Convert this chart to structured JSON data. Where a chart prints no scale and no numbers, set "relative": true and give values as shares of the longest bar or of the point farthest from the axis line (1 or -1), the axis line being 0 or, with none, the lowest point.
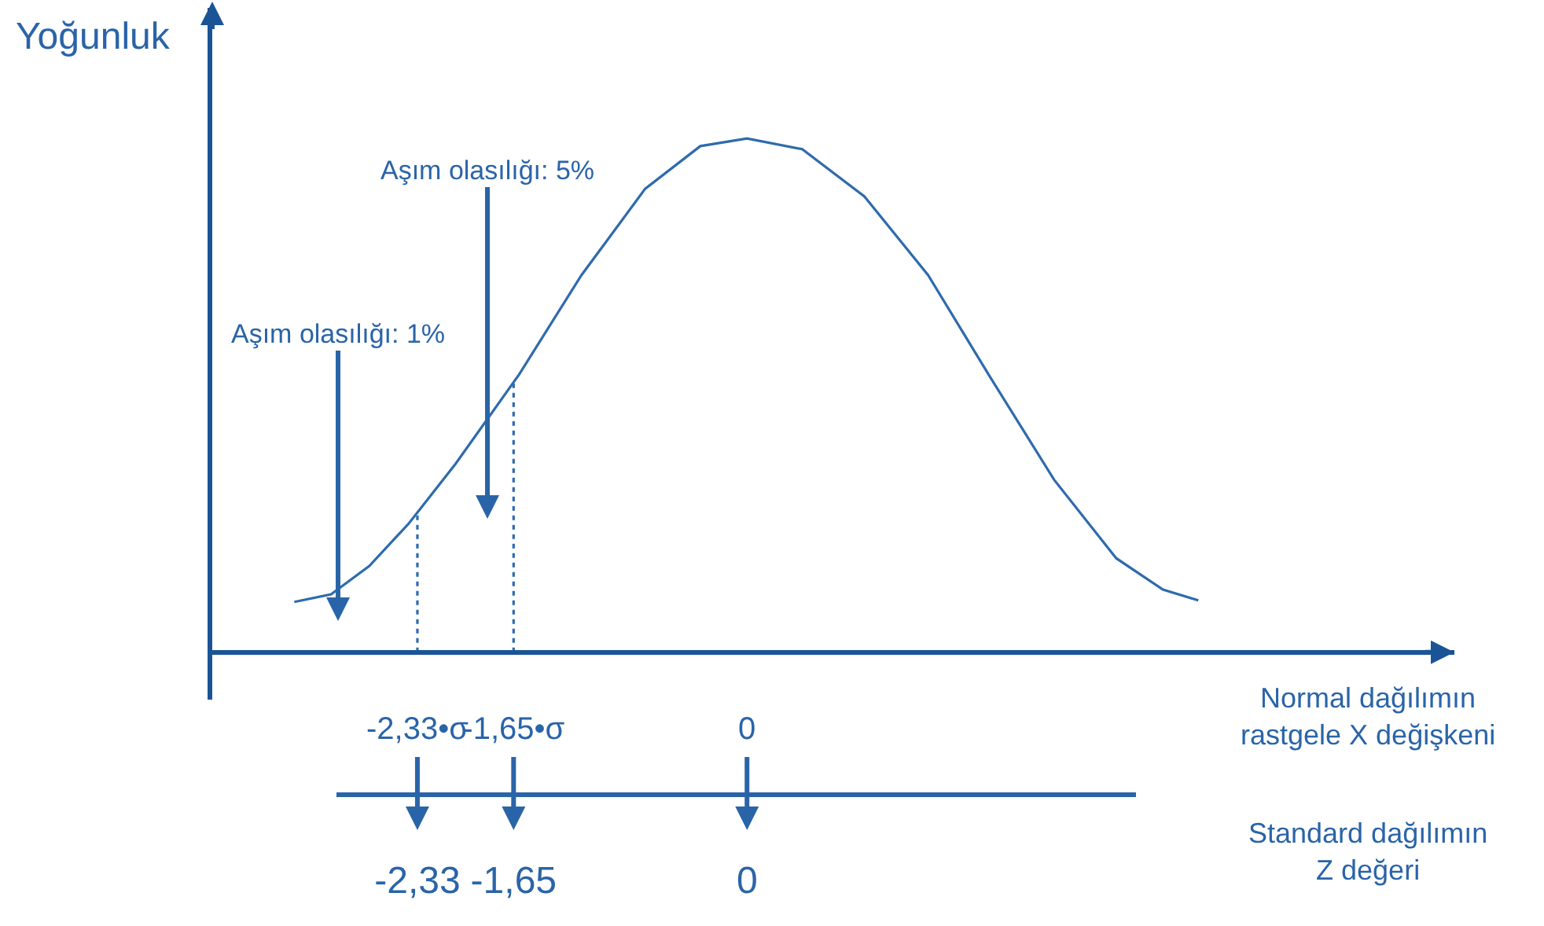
{
  "chart_data": {
    "type": "line",
    "relative": true,
    "ylabel": "Yoğunluk",
    "xlabel": "Normal dağılımın\nrastgele X değişkeni",
    "x2label": "Standard dağılımın\nZ değeri",
    "xlim": [
      -3.78,
      5.0
    ],
    "xticks": [
      {
        "value": -2.33,
        "label": "-2,33•σ"
      },
      {
        "value": -1.65,
        "label": "-1,65•σ"
      },
      0
    ],
    "x2lim": [
      -2.9,
      2.75
    ],
    "x2ticks": [
      {
        "value": -2.33,
        "label": "-2,33"
      },
      {
        "value": -1.65,
        "label": "-1,65"
      },
      0
    ],
    "marker": "none",
    "series": [
      {
        "color": "#2e6bad",
        "line_style": "solid",
        "x": [
          -3.2,
          -2.94,
          -2.67,
          -2.39,
          -2.06,
          -1.61,
          -1.17,
          -0.72,
          -0.33,
          0,
          0.39,
          0.83,
          1.28,
          1.72,
          2.17,
          2.61,
          2.94,
          3.19
        ],
        "values": [
          0.098,
          0.113,
          0.168,
          0.251,
          0.367,
          0.541,
          0.734,
          0.902,
          0.985,
          1,
          0.979,
          0.887,
          0.734,
          0.535,
          0.336,
          0.183,
          0.122,
          0.101
        ]
      },
      {
        "color": "#2e6bad",
        "line_style": "dotted",
        "x": [
          -2.33,
          -2.33
        ],
        "values": [
          0,
          0.27
        ]
      },
      {
        "color": "#2e6bad",
        "line_style": "dotted",
        "x": [
          -1.65,
          -1.65
        ],
        "values": [
          0,
          0.53
        ]
      }
    ],
    "annotations": [
      "Aşım olasılığı: 5%",
      "Aşım olasılığı: 1%"
    ]
  }
}
